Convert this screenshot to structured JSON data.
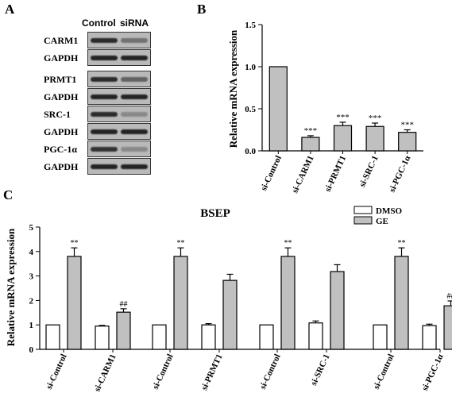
{
  "panels": {
    "a": "A",
    "b": "B",
    "c": "C"
  },
  "western_blot": {
    "columns": [
      "Control",
      "siRNA"
    ],
    "rows": [
      {
        "label": "CARM1",
        "control": 0.9,
        "sirna": 0.45
      },
      {
        "label": "GAPDH",
        "control": 0.95,
        "sirna": 0.95
      },
      {
        "label": "PRMT1",
        "control": 0.9,
        "sirna": 0.55
      },
      {
        "label": "GAPDH",
        "control": 0.95,
        "sirna": 0.95
      },
      {
        "label": "SRC-1",
        "control": 0.9,
        "sirna": 0.3
      },
      {
        "label": "GAPDH",
        "control": 0.95,
        "sirna": 0.95
      },
      {
        "label": "PGC-1α",
        "control": 0.85,
        "sirna": 0.3
      },
      {
        "label": "GAPDH",
        "control": 0.95,
        "sirna": 0.95
      }
    ]
  },
  "chart_data": [
    {
      "type": "bar",
      "title": "",
      "ylabel": "Relative mRNA expression",
      "ylim": [
        0,
        1.5
      ],
      "yticks": [
        "0.0",
        "0.5",
        "1.0",
        "1.5"
      ],
      "categories": [
        "si-Control",
        "si-CARM1",
        "si-PRMT1",
        "si-SRC-1",
        "si-PGC-1α"
      ],
      "values": [
        1.0,
        0.16,
        0.3,
        0.29,
        0.22
      ],
      "errors": [
        0,
        0.02,
        0.04,
        0.04,
        0.03
      ],
      "annotations": [
        "",
        "***",
        "***",
        "***",
        "***"
      ],
      "colors": [
        "#c0c0c0"
      ]
    },
    {
      "type": "bar",
      "title": "BSEP",
      "ylabel": "Relative mRNA expression",
      "ylim": [
        0,
        5
      ],
      "yticks": [
        "0",
        "1",
        "2",
        "3",
        "4",
        "5"
      ],
      "categories": [
        "si-Control",
        "si-CARM1",
        "si-Control",
        "si-PRMT1",
        "si-Control",
        "si-SRC-1",
        "si-Control",
        "si-PGC-1α"
      ],
      "legend": {
        "position": "top-right",
        "entries": [
          "DMSO",
          "GE"
        ]
      },
      "series": [
        {
          "name": "DMSO",
          "color": "#ffffff",
          "values": [
            1.0,
            0.95,
            1.0,
            1.0,
            1.0,
            1.08,
            1.0,
            0.97
          ],
          "errors": [
            0,
            0.03,
            0,
            0.05,
            0,
            0.08,
            0,
            0.06
          ],
          "annotations": [
            "",
            "",
            "",
            "",
            "",
            "",
            "",
            ""
          ]
        },
        {
          "name": "GE",
          "color": "#c0c0c0",
          "values": [
            3.8,
            1.52,
            3.8,
            2.82,
            3.8,
            3.18,
            3.8,
            1.78
          ],
          "errors": [
            0.35,
            0.14,
            0.35,
            0.25,
            0.35,
            0.28,
            0.35,
            0.2
          ],
          "annotations": [
            "**",
            "##",
            "**",
            "",
            "**",
            "",
            "**",
            "##"
          ]
        }
      ]
    }
  ]
}
